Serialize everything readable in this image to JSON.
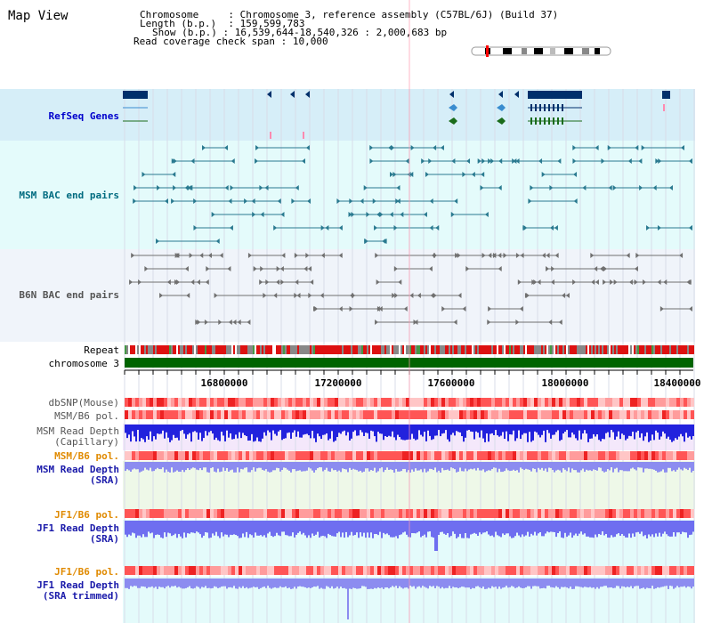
{
  "title": "Map View",
  "info": {
    "chromosome_label": "Chromosome",
    "chromosome_value": "Chromosome 3, reference assembly (C57BL/6J) (Build 37)",
    "length_label": "Length (b.p.)",
    "length_value": "159,599,783",
    "show_label": "Show (b.p.)",
    "show_value": "16,539,644-18,540,326 : 2,000,683 bp",
    "coverage_label": "Read coverage check span",
    "coverage_value": "10,000"
  },
  "tracks": {
    "refseq": "RefSeq Genes",
    "msm_bac": "MSM BAC end pairs",
    "b6n_bac": "B6N BAC end pairs",
    "repeat": "Repeat",
    "chromosome": "chromosome 3",
    "dbsnp": "dbSNP(Mouse)",
    "msm_b6_pol_1": "MSM/B6 pol.",
    "msm_depth_cap_1": "MSM Read Depth",
    "msm_depth_cap_2": "(Capillary)",
    "msm_b6_pol_2": "MSM/B6 pol.",
    "msm_depth_sra_1": "MSM Read Depth",
    "msm_depth_sra_2": "(SRA)",
    "jf1_pol_1": "JF1/B6 pol.",
    "jf1_depth_sra_1": "JF1 Read Depth",
    "jf1_depth_sra_2": "(SRA)",
    "jf1_pol_2": "JF1/B6 pol.",
    "jf1_depth_trim_1": "JF1 Read Depth",
    "jf1_depth_trim_2": "(SRA trimmed)"
  },
  "axis_ticks": [
    "16800000",
    "17200000",
    "17600000",
    "18000000",
    "18400000"
  ],
  "colors": {
    "refseq_bg": "#d6eef8",
    "bac_msm_bg": "#e4fbfb",
    "bac_b6n_bg": "#f0f4fa",
    "refseq_label": "#0000cc",
    "msm_label": "#006b80",
    "b6n_label": "#555555",
    "pol_orange": "#e08a00",
    "depth_blue": "#1a1aaa",
    "chromosome_green": "#006400"
  }
}
